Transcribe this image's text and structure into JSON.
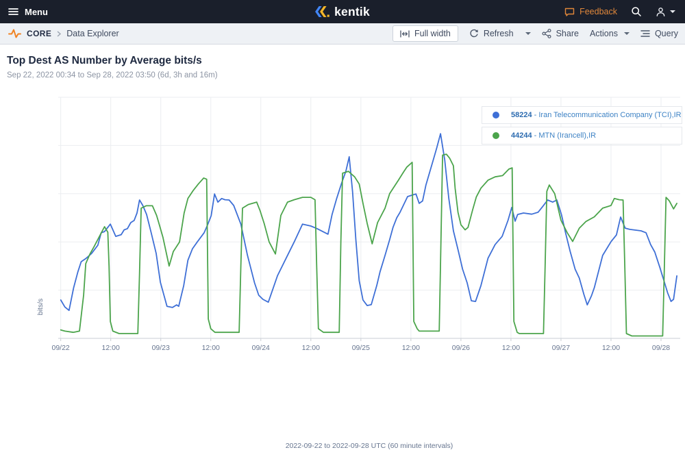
{
  "topbar": {
    "menu": "Menu",
    "brand": "kentik",
    "feedback": "Feedback"
  },
  "toolbar": {
    "breadcrumb": {
      "section": "CORE",
      "page": "Data Explorer"
    },
    "buttons": {
      "full_width": "Full width",
      "refresh": "Refresh",
      "share": "Share",
      "actions": "Actions",
      "query": "Query"
    }
  },
  "chart": {
    "title": "Top Dest AS Number by Average bits/s",
    "subtitle": "Sep 22, 2022 00:34 to Sep 28, 2022 03:50 (6d, 3h and 16m)"
  },
  "chart_data": {
    "type": "line",
    "title": "Top Dest AS Number by Average bits/s",
    "subtitle": "Sep 22, 2022 00:34 to Sep 28, 2022 03:50 (6d, 3h and 16m)",
    "ylabel": "bits/s",
    "xcaption": "2022-09-22 to 2022-09-28 UTC (60 minute intervals)",
    "x_unit": "hours since 2022-09-22 00:00 UTC",
    "x_domain": [
      -0.6,
      148.6
    ],
    "y_domain": [
      0,
      100
    ],
    "y_unit": "percent of plot height (no numeric y tick labels shown)",
    "grid": true,
    "legend_position": "top-right",
    "colors": {
      "grid": "#ebedf0",
      "axis": "#c9ced5",
      "tick_text": "#66758f"
    },
    "x_ticks": [
      {
        "t": 0,
        "label": "09/22"
      },
      {
        "t": 12,
        "label": "12:00"
      },
      {
        "t": 24,
        "label": "09/23"
      },
      {
        "t": 36,
        "label": "12:00"
      },
      {
        "t": 48,
        "label": "09/24"
      },
      {
        "t": 60,
        "label": "12:00"
      },
      {
        "t": 72,
        "label": "09/25"
      },
      {
        "t": 84,
        "label": "12:00"
      },
      {
        "t": 96,
        "label": "09/26"
      },
      {
        "t": 108,
        "label": "12:00"
      },
      {
        "t": 120,
        "label": "09/27"
      },
      {
        "t": 132,
        "label": "12:00"
      },
      {
        "t": 144,
        "label": "09/28"
      }
    ],
    "series": [
      {
        "name": "58224 - Iran Telecommunication Company (TCI),IR",
        "legend_num": "58224",
        "legend_rest": " - Iran Telecommunication Company (TCI),IR",
        "color": "#3e6fd6",
        "points": [
          [
            0,
            15.9
          ],
          [
            1,
            13
          ],
          [
            2,
            11.6
          ],
          [
            3.1,
            21
          ],
          [
            4.1,
            27.5
          ],
          [
            4.9,
            31.8
          ],
          [
            6.1,
            33.2
          ],
          [
            7.4,
            35.2
          ],
          [
            8.9,
            38.6
          ],
          [
            9.7,
            43.8
          ],
          [
            10.5,
            44.3
          ],
          [
            11.9,
            47.4
          ],
          [
            13.2,
            42.3
          ],
          [
            14.5,
            43
          ],
          [
            15.2,
            45
          ],
          [
            16,
            45.5
          ],
          [
            16.8,
            48
          ],
          [
            17.6,
            48.9
          ],
          [
            18.3,
            52
          ],
          [
            18.9,
            57.4
          ],
          [
            19.7,
            55.1
          ],
          [
            20.6,
            51.4
          ],
          [
            21.7,
            43.8
          ],
          [
            22.9,
            35.2
          ],
          [
            23.9,
            23.3
          ],
          [
            25.5,
            13.3
          ],
          [
            26.8,
            12.8
          ],
          [
            27.8,
            13.9
          ],
          [
            28.3,
            13.3
          ],
          [
            29.5,
            21.9
          ],
          [
            30.5,
            32.4
          ],
          [
            31.6,
            37.2
          ],
          [
            32.8,
            40.1
          ],
          [
            34.4,
            43.8
          ],
          [
            35.3,
            47.4
          ],
          [
            36.1,
            50.9
          ],
          [
            36.9,
            59.9
          ],
          [
            37.7,
            56.5
          ],
          [
            38.6,
            58
          ],
          [
            39.4,
            57.5
          ],
          [
            40.4,
            57.4
          ],
          [
            41.5,
            55.1
          ],
          [
            43.2,
            47.4
          ],
          [
            44.8,
            34.4
          ],
          [
            46.5,
            23
          ],
          [
            47.5,
            17.9
          ],
          [
            48.5,
            16.2
          ],
          [
            49.8,
            15
          ],
          [
            52,
            26
          ],
          [
            54,
            33
          ],
          [
            56,
            40
          ],
          [
            58,
            47.4
          ],
          [
            60,
            46.6
          ],
          [
            61.5,
            45.5
          ],
          [
            64.1,
            43.2
          ],
          [
            65.1,
            51.4
          ],
          [
            66.2,
            58
          ],
          [
            67.4,
            64.5
          ],
          [
            68.4,
            69.3
          ],
          [
            69.2,
            75.3
          ],
          [
            70,
            60.8
          ],
          [
            70.8,
            40.9
          ],
          [
            71.6,
            23.9
          ],
          [
            72.5,
            15.9
          ],
          [
            73.5,
            13.6
          ],
          [
            74.5,
            14
          ],
          [
            75.8,
            21.9
          ],
          [
            76.6,
            27.6
          ],
          [
            77.8,
            34.4
          ],
          [
            78.9,
            40.9
          ],
          [
            79.7,
            46
          ],
          [
            80.6,
            50
          ],
          [
            81.4,
            52.3
          ],
          [
            83.2,
            58.8
          ],
          [
            84.3,
            59.4
          ],
          [
            85.2,
            59.9
          ],
          [
            86,
            56
          ],
          [
            86.8,
            57
          ],
          [
            87.6,
            63.6
          ],
          [
            89.3,
            73.6
          ],
          [
            90.2,
            79
          ],
          [
            91.1,
            84.9
          ],
          [
            92.1,
            74.1
          ],
          [
            93.1,
            58
          ],
          [
            94.2,
            44.6
          ],
          [
            95.4,
            36.1
          ],
          [
            96.4,
            28.7
          ],
          [
            97.5,
            23
          ],
          [
            98.5,
            15.6
          ],
          [
            99.5,
            15.3
          ],
          [
            100.8,
            21.9
          ],
          [
            102.5,
            33.2
          ],
          [
            104.2,
            38.9
          ],
          [
            105.9,
            42.3
          ],
          [
            107.3,
            49
          ],
          [
            108.2,
            54.3
          ],
          [
            109,
            48.6
          ],
          [
            109.6,
            51.4
          ],
          [
            111,
            52
          ],
          [
            113,
            51.5
          ],
          [
            114.5,
            52.3
          ],
          [
            115.7,
            54.9
          ],
          [
            116.8,
            57.4
          ],
          [
            118,
            56.5
          ],
          [
            119,
            57.4
          ],
          [
            120.1,
            51.4
          ],
          [
            121.1,
            43.8
          ],
          [
            122.2,
            36.1
          ],
          [
            123.4,
            28.7
          ],
          [
            124.4,
            25
          ],
          [
            125.5,
            18.2
          ],
          [
            126.3,
            13.9
          ],
          [
            127.3,
            17.6
          ],
          [
            128,
            21
          ],
          [
            130,
            34.4
          ],
          [
            132,
            40.1
          ],
          [
            133.3,
            42.9
          ],
          [
            134.3,
            50.3
          ],
          [
            135.4,
            45.7
          ],
          [
            136.5,
            45.2
          ],
          [
            139.2,
            44.6
          ],
          [
            140.4,
            43.8
          ],
          [
            141.5,
            38.9
          ],
          [
            142.5,
            35.8
          ],
          [
            143.7,
            29.5
          ],
          [
            144.8,
            23.3
          ],
          [
            145.6,
            18.8
          ],
          [
            146.4,
            15.3
          ],
          [
            147,
            16.2
          ],
          [
            147.8,
            25.9
          ]
        ]
      },
      {
        "name": "44244 - MTN (Irancell),IR",
        "legend_num": "44244",
        "legend_rest": " - MTN (Irancell),IR",
        "color": "#4ba44b",
        "points": [
          [
            0,
            3.5
          ],
          [
            1,
            3
          ],
          [
            3,
            2.5
          ],
          [
            4.5,
            3
          ],
          [
            5.5,
            18
          ],
          [
            6,
            31
          ],
          [
            7,
            35
          ],
          [
            8,
            38
          ],
          [
            9.5,
            43
          ],
          [
            10.5,
            46.3
          ],
          [
            11.3,
            44
          ],
          [
            11.6,
            30
          ],
          [
            11.9,
            7
          ],
          [
            12.5,
            3
          ],
          [
            14,
            2
          ],
          [
            18.5,
            2
          ],
          [
            18.9,
            27
          ],
          [
            19.3,
            54
          ],
          [
            20.5,
            55
          ],
          [
            22,
            55
          ],
          [
            23,
            51
          ],
          [
            23.5,
            48
          ],
          [
            24.5,
            42
          ],
          [
            26,
            30
          ],
          [
            27,
            36
          ],
          [
            28.5,
            40
          ],
          [
            29.6,
            52
          ],
          [
            30.5,
            58
          ],
          [
            31.8,
            61.4
          ],
          [
            33,
            64
          ],
          [
            34.3,
            66.5
          ],
          [
            35,
            66
          ],
          [
            35.4,
            8
          ],
          [
            36,
            4
          ],
          [
            37,
            2.5
          ],
          [
            42.8,
            2.5
          ],
          [
            43.2,
            30
          ],
          [
            43.6,
            54
          ],
          [
            45,
            55.5
          ],
          [
            47,
            56.5
          ],
          [
            47.8,
            53
          ],
          [
            48.8,
            47.7
          ],
          [
            50,
            40
          ],
          [
            51.5,
            35
          ],
          [
            52.8,
            51
          ],
          [
            54.4,
            56.5
          ],
          [
            56,
            57.5
          ],
          [
            58,
            58.5
          ],
          [
            60,
            58.5
          ],
          [
            61,
            57.5
          ],
          [
            61.4,
            30
          ],
          [
            61.8,
            4
          ],
          [
            63,
            2.5
          ],
          [
            66.8,
            2.5
          ],
          [
            67.2,
            40
          ],
          [
            67.6,
            68.5
          ],
          [
            69,
            69.3
          ],
          [
            70.5,
            67
          ],
          [
            71.6,
            64
          ],
          [
            72.5,
            56
          ],
          [
            73.5,
            47.7
          ],
          [
            74.7,
            39.2
          ],
          [
            76,
            48
          ],
          [
            77.8,
            54
          ],
          [
            78.9,
            60
          ],
          [
            81,
            65.6
          ],
          [
            82.2,
            68.9
          ],
          [
            83,
            71
          ],
          [
            84.3,
            73
          ],
          [
            84.7,
            7
          ],
          [
            85.5,
            4
          ],
          [
            86,
            3
          ],
          [
            90.8,
            3
          ],
          [
            91.2,
            40
          ],
          [
            91.6,
            76
          ],
          [
            92.5,
            76.4
          ],
          [
            93.3,
            74.7
          ],
          [
            94.2,
            71.6
          ],
          [
            94.6,
            62.3
          ],
          [
            95.3,
            52.3
          ],
          [
            96,
            47.1
          ],
          [
            97,
            45
          ],
          [
            97.7,
            46
          ],
          [
            98.8,
            53.2
          ],
          [
            99.7,
            58.7
          ],
          [
            100.8,
            62.3
          ],
          [
            102.5,
            65.6
          ],
          [
            104.2,
            67
          ],
          [
            106,
            67.5
          ],
          [
            107.5,
            70.2
          ],
          [
            108.3,
            70.7
          ],
          [
            108.7,
            7
          ],
          [
            109.5,
            2.5
          ],
          [
            110,
            2
          ],
          [
            115.8,
            2
          ],
          [
            116.2,
            30
          ],
          [
            116.6,
            61
          ],
          [
            117.2,
            63.6
          ],
          [
            118.5,
            60
          ],
          [
            120,
            49
          ],
          [
            121.5,
            43.8
          ],
          [
            122.8,
            40.2
          ],
          [
            124.4,
            45.7
          ],
          [
            126,
            48.5
          ],
          [
            128,
            50.4
          ],
          [
            130,
            54
          ],
          [
            132,
            55.1
          ],
          [
            132.8,
            58
          ],
          [
            134,
            57.5
          ],
          [
            134.9,
            57.4
          ],
          [
            135.3,
            30
          ],
          [
            135.7,
            2
          ],
          [
            137,
            1
          ],
          [
            144.4,
            1
          ],
          [
            144.8,
            30
          ],
          [
            145.2,
            58.5
          ],
          [
            146,
            57
          ],
          [
            147,
            53.7
          ],
          [
            147.8,
            56
          ]
        ]
      }
    ]
  }
}
